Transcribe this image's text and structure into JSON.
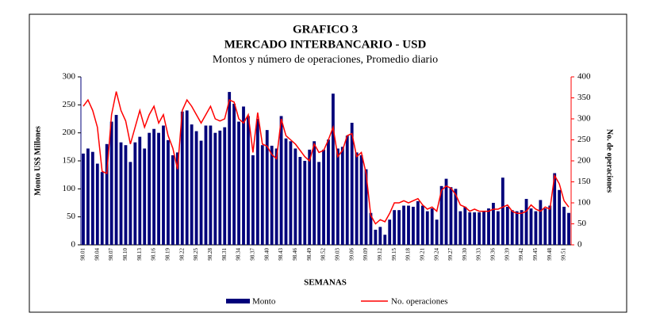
{
  "chart_data": {
    "type": "bar",
    "title": "GRAFICO 3",
    "subtitle": "MERCADO INTERBANCARIO - USD",
    "subtitle2": "Montos y número de operaciones, Promedio diario",
    "x_label": "SEMANAS",
    "y_label": "Monto US$ Millones",
    "y2_label": "No. de operaciones",
    "categories": [
      "98.01",
      null,
      null,
      "98.04",
      null,
      null,
      "98.07",
      null,
      null,
      "98.10",
      null,
      null,
      "98.13",
      null,
      null,
      "98.16",
      null,
      null,
      "98.19",
      null,
      null,
      "98.22",
      null,
      null,
      "98.25",
      null,
      null,
      "98.28",
      null,
      null,
      "98.31",
      null,
      null,
      "98.34",
      null,
      null,
      "98.37",
      null,
      null,
      "98.40",
      null,
      null,
      "98.43",
      null,
      null,
      "98.46",
      null,
      null,
      "98.49",
      null,
      null,
      "98.52",
      null,
      null,
      "99.03",
      null,
      null,
      "99.06",
      null,
      null,
      "99.09",
      null,
      null,
      "99.12",
      null,
      null,
      "99.15",
      null,
      null,
      "99.18",
      null,
      null,
      "99.21",
      null,
      null,
      "99.24",
      null,
      null,
      "99.27",
      null,
      null,
      "99.30",
      null,
      null,
      "99.33",
      null,
      null,
      "99.36",
      null,
      null,
      "99.39",
      null,
      null,
      "99.42",
      null,
      null,
      "99.45",
      null,
      null,
      "99.48",
      null,
      null,
      "99.51",
      null
    ],
    "series": [
      {
        "name": "Monto",
        "color": "#00007a",
        "type": "bar",
        "values": [
          163,
          172,
          166,
          145,
          130,
          180,
          220,
          232,
          183,
          178,
          148,
          183,
          193,
          172,
          200,
          207,
          200,
          213,
          187,
          160,
          165,
          238,
          240,
          215,
          203,
          186,
          213,
          213,
          200,
          204,
          210,
          273,
          252,
          220,
          247,
          230,
          160,
          225,
          178,
          205,
          177,
          172,
          230,
          190,
          185,
          172,
          157,
          150,
          170,
          185,
          148,
          170,
          188,
          270,
          172,
          175,
          195,
          218,
          165,
          160,
          135,
          57,
          27,
          32,
          18,
          45,
          62,
          62,
          70,
          70,
          68,
          78,
          70,
          60,
          65,
          45,
          105,
          118,
          103,
          100,
          60,
          68,
          58,
          58,
          58,
          60,
          65,
          75,
          60,
          120,
          68,
          62,
          60,
          62,
          82,
          65,
          60,
          80,
          65,
          70,
          128,
          98,
          68,
          57
        ]
      },
      {
        "name": "No. operaciones",
        "color": "#ff0000",
        "type": "line",
        "axis": "y2",
        "values": [
          330,
          345,
          320,
          280,
          175,
          170,
          310,
          365,
          320,
          295,
          240,
          280,
          320,
          280,
          310,
          330,
          290,
          310,
          260,
          230,
          180,
          320,
          345,
          330,
          310,
          290,
          310,
          330,
          300,
          295,
          300,
          345,
          340,
          300,
          290,
          310,
          220,
          315,
          240,
          235,
          215,
          205,
          300,
          260,
          250,
          240,
          225,
          210,
          200,
          240,
          220,
          225,
          250,
          280,
          210,
          225,
          260,
          265,
          210,
          220,
          170,
          70,
          50,
          60,
          55,
          75,
          100,
          100,
          105,
          100,
          105,
          110,
          95,
          85,
          90,
          80,
          130,
          140,
          135,
          120,
          95,
          90,
          80,
          85,
          80,
          80,
          80,
          85,
          85,
          90,
          95,
          80,
          75,
          75,
          80,
          95,
          85,
          80,
          90,
          85,
          165,
          145,
          105,
          90
        ]
      }
    ],
    "ylim": [
      0,
      300
    ],
    "yticks": [
      0,
      50,
      100,
      150,
      200,
      250,
      300
    ],
    "y2lim": [
      0,
      400
    ],
    "y2ticks": [
      0,
      50,
      100,
      150,
      200,
      250,
      300,
      350,
      400
    ],
    "legend": "bottom"
  }
}
